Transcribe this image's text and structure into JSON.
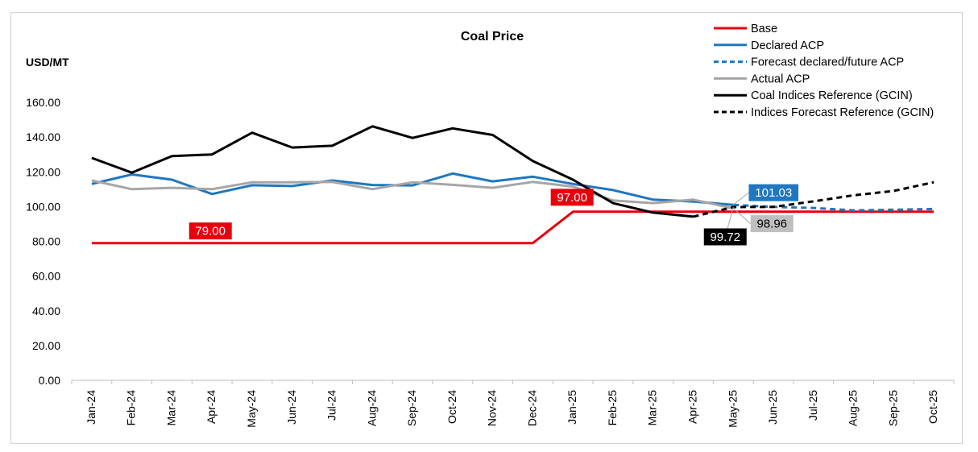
{
  "chart_data": {
    "type": "line",
    "title": "Coal Price",
    "ylabel": "USD/MT",
    "xlabel": "",
    "ylim": [
      0,
      160
    ],
    "yticks": [
      "0.00",
      "20.00",
      "40.00",
      "60.00",
      "80.00",
      "100.00",
      "120.00",
      "140.00",
      "160.00"
    ],
    "categories": [
      "Jan-24",
      "Feb-24",
      "Mar-24",
      "Apr-24",
      "May-24",
      "Jun-24",
      "Jul-24",
      "Aug-24",
      "Sep-24",
      "Oct-24",
      "Nov-24",
      "Dec-24",
      "Jan-25",
      "Feb-25",
      "Mar-25",
      "Apr-25",
      "May-25",
      "Jun-25",
      "Jul-25",
      "Aug-25",
      "Sep-25",
      "Oct-25"
    ],
    "legend_position": "top-right",
    "grid": false,
    "series": [
      {
        "name": "Base",
        "color": "#e8000d",
        "dash": false,
        "values": [
          79,
          79,
          79,
          79,
          79,
          79,
          79,
          79,
          79,
          79,
          79,
          79,
          97,
          97,
          97,
          97,
          97,
          97,
          97,
          97,
          97,
          97
        ]
      },
      {
        "name": "Declared ACP",
        "color": "#1f77c0",
        "dash": false,
        "values": [
          113,
          118.5,
          115.5,
          107.2,
          112.3,
          111.8,
          115,
          112.4,
          112.2,
          119,
          114.5,
          117.2,
          113,
          109.5,
          104,
          102.9,
          101.03,
          null,
          null,
          null,
          null,
          null
        ]
      },
      {
        "name": "Forecast declared/future ACP",
        "color": "#1f77c0",
        "dash": true,
        "values": [
          null,
          null,
          null,
          null,
          null,
          null,
          null,
          null,
          null,
          null,
          null,
          null,
          null,
          null,
          null,
          null,
          101.03,
          99.8,
          99.2,
          97.8,
          98.2,
          98.6
        ]
      },
      {
        "name": "Actual ACP",
        "color": "#a6a6a6",
        "dash": false,
        "values": [
          115,
          110,
          110.8,
          110,
          114,
          114,
          114.2,
          110,
          114,
          112.5,
          110.8,
          114.2,
          111.5,
          103.5,
          102,
          104,
          98.96,
          null,
          null,
          null,
          null,
          null
        ]
      },
      {
        "name": "Coal Indices Reference (GCIN)",
        "color": "#000000",
        "dash": false,
        "values": [
          128,
          119.5,
          129,
          130,
          142.5,
          134,
          135,
          146.2,
          139.5,
          145,
          141.2,
          126.2,
          115.5,
          102,
          96.5,
          94.2,
          null,
          null,
          null,
          null,
          null,
          null
        ]
      },
      {
        "name": "Indices Forecast Reference (GCIN)",
        "color": "#000000",
        "dash": true,
        "values": [
          null,
          null,
          null,
          null,
          null,
          null,
          null,
          null,
          null,
          null,
          null,
          null,
          null,
          null,
          null,
          94.2,
          99.72,
          99.8,
          103,
          106.5,
          109,
          114
        ]
      }
    ],
    "data_labels": [
      {
        "text": "79.00",
        "series": 0,
        "index": 3,
        "bg": "#e8000d",
        "fg": "#ffffff"
      },
      {
        "text": "97.00",
        "series": 0,
        "index": 12,
        "bg": "#e8000d",
        "fg": "#ffffff"
      },
      {
        "text": "101.03",
        "series": 1,
        "index": 16,
        "bg": "#1f77c0",
        "fg": "#ffffff"
      },
      {
        "text": "98.96",
        "series": 3,
        "index": 16,
        "bg": "#bfbfbf",
        "fg": "#000000"
      },
      {
        "text": "99.72",
        "series": 5,
        "index": 16,
        "bg": "#000000",
        "fg": "#ffffff"
      }
    ]
  }
}
